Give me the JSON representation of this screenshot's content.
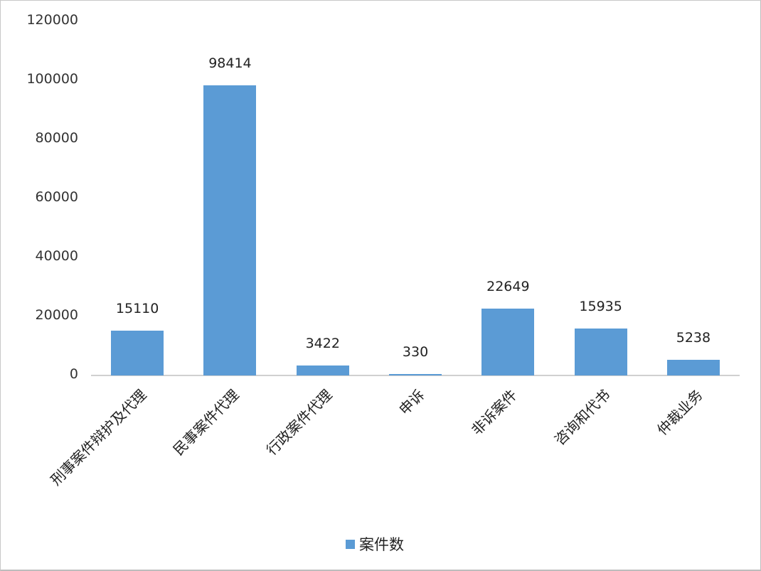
{
  "chart_data": {
    "type": "bar",
    "title": "",
    "xlabel": "",
    "ylabel": "",
    "ylim": [
      0,
      120000
    ],
    "yticks": [
      "0",
      "20000",
      "40000",
      "60000",
      "80000",
      "100000",
      "120000"
    ],
    "grid": false,
    "legend_position": "bottom",
    "categories": [
      "刑事案件辩护及代理",
      "民事案件代理",
      "行政案件代理",
      "申诉",
      "非诉案件",
      "咨询和代书",
      "仲裁业务"
    ],
    "series": [
      {
        "name": "案件数",
        "color": "#5b9bd5",
        "values": [
          15110,
          98414,
          3422,
          330,
          22649,
          15935,
          5238
        ]
      }
    ],
    "data_labels": [
      "15110",
      "98414",
      "3422",
      "330",
      "22649",
      "15935",
      "5238"
    ]
  },
  "legend": {
    "label": "案件数"
  }
}
